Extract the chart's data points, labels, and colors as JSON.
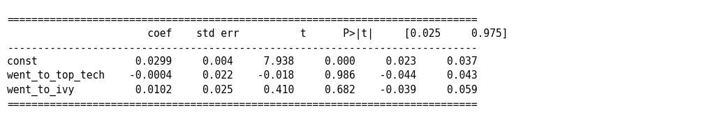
{
  "bg_color": "#ffffff",
  "text_color": "#000000",
  "font_family": "monospace",
  "font_size": 10.5,
  "table_text": "=============================================================================\n                 coef    std err          t      P>|t|      [0.025      0.975]\n-----------------------------------------------------------------------------\nconst          0.0299      0.004      7.938      0.000       0.023       0.037\nwent_to_top_tech  -0.0004      0.022     -0.018      0.986      -0.044       0.043\nwent_to_ivy    0.0102      0.025      0.410      0.682      -0.039       0.059\n=============================================================================",
  "figwidth": 10.24,
  "figheight": 1.74,
  "dpi": 100
}
